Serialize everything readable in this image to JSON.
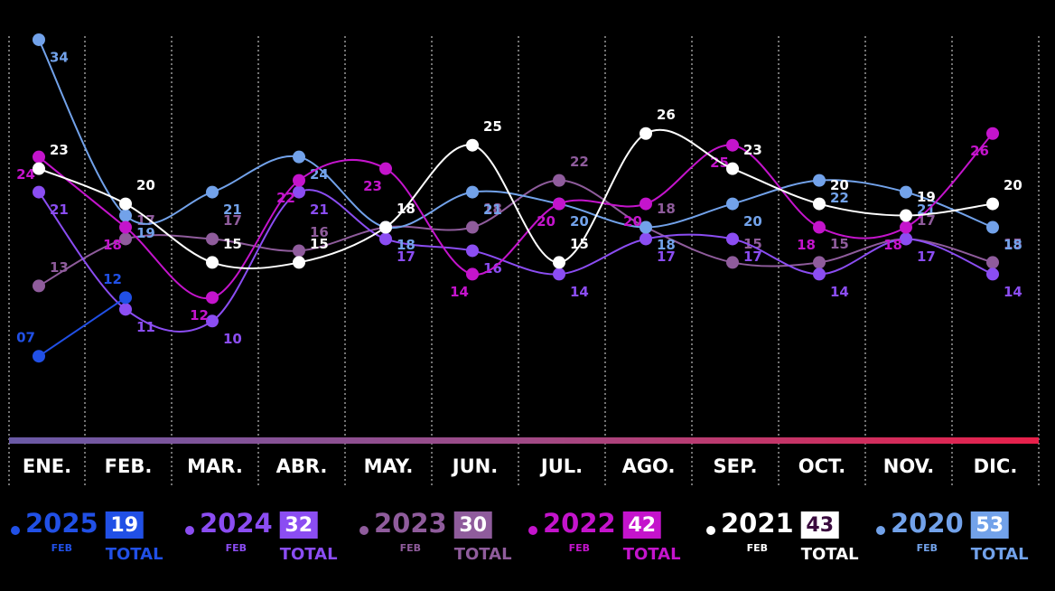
{
  "chart_data": {
    "type": "line",
    "categories": [
      "ENE.",
      "FEB.",
      "MAR.",
      "ABR.",
      "MAY.",
      "JUN.",
      "JUL.",
      "AGO.",
      "SEP.",
      "OCT.",
      "NOV.",
      "DIC."
    ],
    "ylim": [
      0,
      35
    ],
    "legend_sub": "FEB",
    "legend_total": "TOTAL",
    "series": [
      {
        "name": "2025",
        "color": "#2150e6",
        "badge": 19,
        "values": [
          7,
          12,
          null,
          null,
          null,
          null,
          null,
          null,
          null,
          null,
          null,
          null
        ],
        "value_labels": [
          "07",
          "12",
          null,
          null,
          null,
          null,
          null,
          null,
          null,
          null,
          null,
          null
        ]
      },
      {
        "name": "2024",
        "color": "#8b4df2",
        "badge": 32,
        "values": [
          21,
          11,
          10,
          21,
          17,
          16,
          14,
          17,
          17,
          14,
          17,
          14
        ]
      },
      {
        "name": "2023",
        "color": "#8f5c9c",
        "badge": 30,
        "values": [
          13,
          17,
          17,
          16,
          18,
          18,
          22,
          18,
          15,
          15,
          17,
          15
        ]
      },
      {
        "name": "2022",
        "color": "#c414cc",
        "badge": 42,
        "values": [
          24,
          18,
          12,
          22,
          23,
          14,
          20,
          20,
          25,
          18,
          18,
          26
        ]
      },
      {
        "name": "2021",
        "color": "#ffffff",
        "badge": 43,
        "values": [
          23,
          20,
          15,
          15,
          18,
          25,
          15,
          26,
          23,
          20,
          19,
          20
        ]
      },
      {
        "name": "2020",
        "color": "#72a2ea",
        "badge": 53,
        "values": [
          34,
          19,
          21,
          24,
          18,
          21,
          20,
          18,
          20,
          22,
          21,
          18
        ]
      }
    ]
  }
}
